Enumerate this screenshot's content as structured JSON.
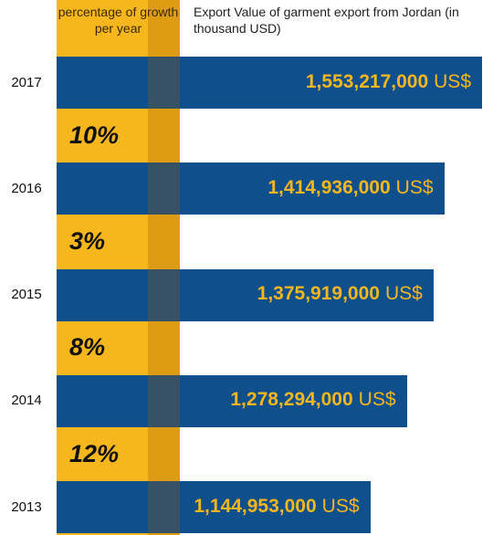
{
  "chart_data": {
    "type": "bar",
    "orientation": "horizontal",
    "title": "Export Value of garment export from Jordan (in thousand USD)",
    "categories": [
      "2017",
      "2016",
      "2015",
      "2014",
      "2013"
    ],
    "values": [
      1553217000,
      1414936000,
      1375919000,
      1278294000,
      1144953000
    ],
    "value_labels": [
      "1,553,217,000",
      "1,414,936,000",
      "1,375,919,000",
      "1,278,294,000",
      "1,144,953,000"
    ],
    "value_unit": "US$",
    "color": "#0e4f8c",
    "growth": {
      "name": "percentage of growth per year",
      "values": [
        10,
        3,
        8,
        12
      ],
      "value_labels": [
        "10%",
        "3%",
        "8%",
        "12%"
      ]
    }
  }
}
